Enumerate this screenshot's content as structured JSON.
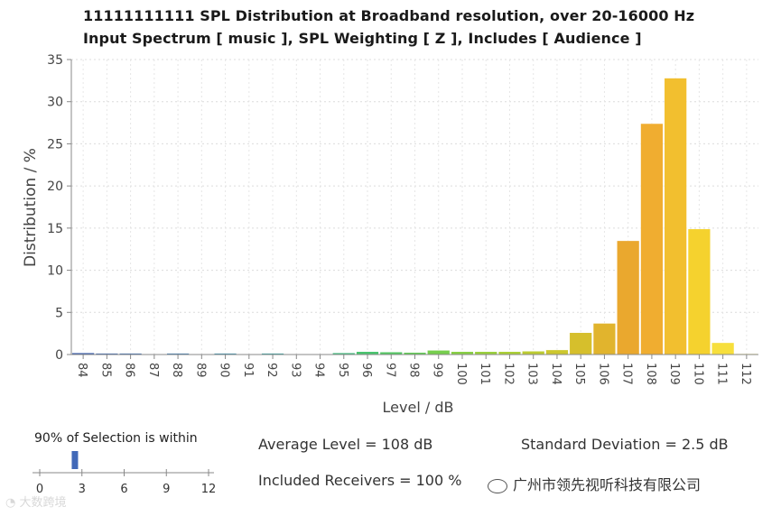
{
  "titles": {
    "line1": "11111111111 SPL Distribution at Broadband resolution, over 20-16000 Hz",
    "line2": "Input Spectrum [ music ], SPL Weighting [ Z ], Includes [ Audience ]"
  },
  "chart_data": {
    "type": "bar",
    "title": "11111111111 SPL Distribution at Broadband resolution, over 20-16000 Hz",
    "subtitle": "Input Spectrum [ music ], SPL Weighting [ Z ], Includes [ Audience ]",
    "xlabel": "Level / dB",
    "ylabel": "Distribution / %",
    "ylim": [
      0,
      35
    ],
    "yticks": [
      0,
      5,
      10,
      15,
      20,
      25,
      30,
      35
    ],
    "grid": true,
    "categories": [
      "84",
      "85",
      "86",
      "87",
      "88",
      "89",
      "90",
      "91",
      "92",
      "93",
      "94",
      "95",
      "96",
      "97",
      "98",
      "99",
      "100",
      "101",
      "102",
      "103",
      "104",
      "105",
      "106",
      "107",
      "108",
      "109",
      "110",
      "111",
      "112"
    ],
    "values": [
      0.2,
      0.15,
      0.15,
      0,
      0.15,
      0,
      0.15,
      0,
      0.15,
      0,
      0,
      0.2,
      0.35,
      0.3,
      0.25,
      0.5,
      0.35,
      0.35,
      0.35,
      0.4,
      0.55,
      2.6,
      3.7,
      13.5,
      27.4,
      32.8,
      14.9,
      1.4,
      0.1
    ],
    "colors": [
      "#3c5fb0",
      "#3a66b3",
      "#3a6db5",
      "#3a74b6",
      "#387cb6",
      "#3684b4",
      "#3490b0",
      "#3299aa",
      "#31a3a2",
      "#33ad98",
      "#38b68c",
      "#3fbe7e",
      "#4ac46f",
      "#55c964",
      "#64cc58",
      "#76ce4d",
      "#88cf45",
      "#9ad03d",
      "#abcf36",
      "#bccc31",
      "#ccc72e",
      "#d6bf2c",
      "#e1b42d",
      "#eaa82e",
      "#f0ad30",
      "#f2bf2f",
      "#f5d22e",
      "#f7df3c",
      "#f4e766"
    ]
  },
  "stats": {
    "average_level": "Average Level = 108 dB",
    "standard_deviation": "Standard Deviation = 2.5 dB",
    "included_receivers": "Included Receivers = 100 %"
  },
  "selection": {
    "label": "90% of Selection is within",
    "value": 2.5,
    "range": [
      0,
      12
    ],
    "ticks": [
      "0",
      "3",
      "6",
      "9",
      "12"
    ],
    "color": "#4169b8"
  },
  "watermark": {
    "company": "广州市领先视听科技有限公司",
    "faint_text": "大数跨境"
  }
}
